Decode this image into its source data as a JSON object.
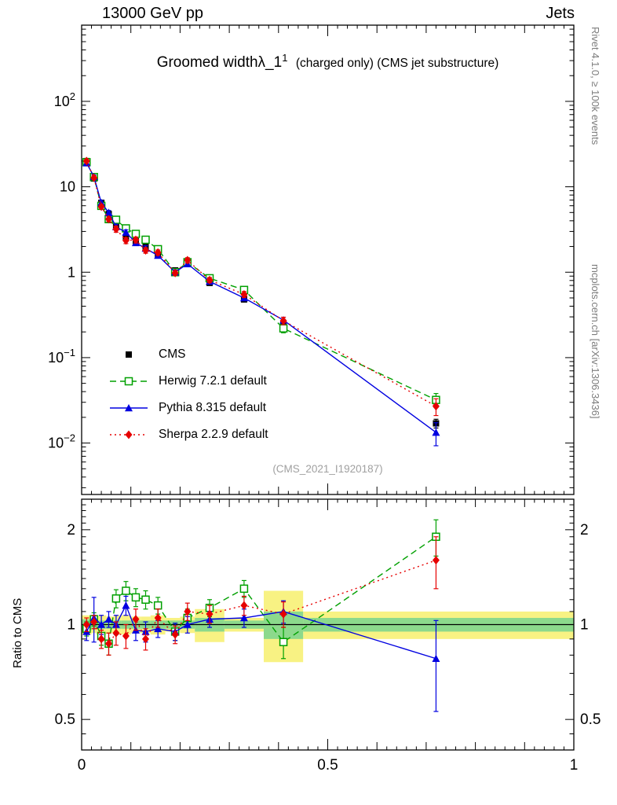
{
  "header": {
    "left": "13000 GeV pp",
    "right": "Jets"
  },
  "titles": {
    "main": "Groomed width",
    "lambda": "λ_1",
    "sup": "1",
    "suffix": "(charged only) (CMS jet substructure)"
  },
  "watermark": "(CMS_2021_I1920187)",
  "side_texts": {
    "rivet": "Rivet 4.1.0, ≥ 100k events",
    "mcplots": "mcplots.cern.ch [arXiv:1306.3436]"
  },
  "ratio_ylabel": "Ratio to CMS",
  "chart_data": {
    "type": "line",
    "title": "Groomed width λ_1^1 (charged only) (CMS jet substructure)",
    "xlabel": "",
    "ylabel": "",
    "xlim": [
      0,
      1
    ],
    "ylim_main": [
      0.0025,
      780
    ],
    "ylim_ratio": [
      0.4,
      2.5
    ],
    "xticks": [
      0,
      0.5,
      1
    ],
    "xtick_labels": [
      "0",
      "0.5",
      "1"
    ],
    "main_ytick_decades": [
      2,
      1,
      0,
      -1,
      -2
    ],
    "ratio_yticks": [
      2,
      1,
      0.5
    ],
    "ratio_yticks_minor": [
      0.45,
      0.6,
      0.7,
      0.8,
      0.9,
      1.1,
      1.2,
      1.3,
      1.4,
      1.5,
      1.6,
      1.7,
      1.8,
      1.9,
      2.1,
      2.2,
      2.3,
      2.4
    ],
    "band_colors": {
      "yellow": "#f8f283",
      "green": "#8cd98c"
    },
    "x": [
      0.01,
      0.025,
      0.04,
      0.055,
      0.07,
      0.09,
      0.11,
      0.13,
      0.155,
      0.19,
      0.215,
      0.26,
      0.33,
      0.41,
      0.72
    ],
    "series": [
      {
        "id": "cms",
        "name": "CMS",
        "color": "#000000",
        "marker": "square-filled",
        "line": "none",
        "values": [
          20,
          12.5,
          6.5,
          4.8,
          3.4,
          2.55,
          2.3,
          2.0,
          1.62,
          1.05,
          1.25,
          0.75,
          0.48,
          0.25,
          0.017
        ],
        "yerr": [
          1.2,
          0.8,
          0.4,
          0.3,
          0.2,
          0.15,
          0.13,
          0.12,
          0.1,
          0.07,
          0.08,
          0.05,
          0.03,
          0.02,
          0.002
        ]
      },
      {
        "id": "herwig",
        "name": "Herwig 7.2.1 default",
        "color": "#00a000",
        "marker": "square-open",
        "line": "dashed",
        "values": [
          19.4,
          13.0,
          5.98,
          4.18,
          4.11,
          3.26,
          2.81,
          2.4,
          1.86,
          1.0,
          1.31,
          0.85,
          0.62,
          0.22,
          0.032
        ],
        "yerr": [
          1.0,
          0.65,
          0.4,
          0.34,
          0.27,
          0.23,
          0.18,
          0.16,
          0.11,
          0.06,
          0.09,
          0.05,
          0.04,
          0.025,
          0.006
        ],
        "ratio": [
          0.97,
          1.04,
          0.92,
          0.87,
          1.21,
          1.28,
          1.22,
          1.2,
          1.15,
          0.95,
          1.05,
          1.13,
          1.3,
          0.88,
          1.9
        ],
        "ratio_err": [
          0.05,
          0.05,
          0.06,
          0.07,
          0.08,
          0.09,
          0.08,
          0.08,
          0.07,
          0.06,
          0.07,
          0.07,
          0.08,
          0.1,
          0.25
        ]
      },
      {
        "id": "pythia",
        "name": "Pythia 8.315 default",
        "color": "#0000e0",
        "marker": "triangle-filled",
        "line": "solid",
        "values": [
          19.0,
          13.1,
          6.5,
          4.99,
          3.4,
          2.93,
          2.21,
          1.9,
          1.57,
          1.0,
          1.25,
          0.78,
          0.5,
          0.275,
          0.0133
        ],
        "yerr": [
          1.0,
          0.65,
          0.39,
          0.29,
          0.24,
          0.2,
          0.16,
          0.14,
          0.1,
          0.06,
          0.075,
          0.047,
          0.035,
          0.022,
          0.004
        ],
        "ratio": [
          0.95,
          1.05,
          1.0,
          1.04,
          1.0,
          1.15,
          0.96,
          0.95,
          0.97,
          0.95,
          1.0,
          1.04,
          1.05,
          1.1,
          0.78
        ],
        "ratio_err": [
          0.06,
          0.17,
          0.07,
          0.06,
          0.07,
          0.08,
          0.07,
          0.07,
          0.06,
          0.06,
          0.06,
          0.06,
          0.07,
          0.09,
          0.25
        ]
      },
      {
        "id": "sherpa",
        "name": "Sherpa 2.2.9 default",
        "color": "#e60000",
        "marker": "diamond-filled",
        "line": "dotted",
        "values": [
          20.0,
          12.75,
          5.85,
          4.18,
          3.2,
          2.35,
          2.39,
          1.8,
          1.7,
          0.98,
          1.38,
          0.81,
          0.55,
          0.27,
          0.027
        ],
        "yerr": [
          1.0,
          0.64,
          0.35,
          0.29,
          0.26,
          0.19,
          0.19,
          0.13,
          0.12,
          0.06,
          0.097,
          0.057,
          0.044,
          0.027,
          0.006
        ],
        "ratio": [
          1.0,
          1.02,
          0.9,
          0.87,
          0.94,
          0.92,
          1.04,
          0.9,
          1.05,
          0.93,
          1.1,
          1.08,
          1.15,
          1.08,
          1.6
        ],
        "ratio_err": [
          0.05,
          0.05,
          0.06,
          0.07,
          0.08,
          0.08,
          0.08,
          0.07,
          0.07,
          0.06,
          0.07,
          0.07,
          0.08,
          0.1,
          0.3
        ]
      }
    ],
    "ratio_bands": [
      {
        "x0": 0.0,
        "x1": 0.02,
        "yellow": [
          0.93,
          1.07
        ],
        "green": [
          0.96,
          1.04
        ]
      },
      {
        "x0": 0.02,
        "x1": 0.03,
        "yellow": [
          0.94,
          1.06
        ],
        "green": [
          0.97,
          1.03
        ]
      },
      {
        "x0": 0.03,
        "x1": 0.05,
        "yellow": [
          0.93,
          1.07
        ],
        "green": [
          0.97,
          1.03
        ]
      },
      {
        "x0": 0.05,
        "x1": 0.065,
        "yellow": [
          0.94,
          1.06
        ],
        "green": [
          0.97,
          1.03
        ]
      },
      {
        "x0": 0.065,
        "x1": 0.08,
        "yellow": [
          0.93,
          1.07
        ],
        "green": [
          0.97,
          1.03
        ]
      },
      {
        "x0": 0.08,
        "x1": 0.1,
        "yellow": [
          0.93,
          1.07
        ],
        "green": [
          0.97,
          1.03
        ]
      },
      {
        "x0": 0.1,
        "x1": 0.12,
        "yellow": [
          0.94,
          1.06
        ],
        "green": [
          0.97,
          1.03
        ]
      },
      {
        "x0": 0.12,
        "x1": 0.14,
        "yellow": [
          0.94,
          1.06
        ],
        "green": [
          0.97,
          1.03
        ]
      },
      {
        "x0": 0.14,
        "x1": 0.17,
        "yellow": [
          0.93,
          1.07
        ],
        "green": [
          0.97,
          1.03
        ]
      },
      {
        "x0": 0.17,
        "x1": 0.2,
        "yellow": [
          0.95,
          1.05
        ],
        "green": [
          0.97,
          1.03
        ]
      },
      {
        "x0": 0.2,
        "x1": 0.23,
        "yellow": [
          0.94,
          1.06
        ],
        "green": [
          0.97,
          1.03
        ]
      },
      {
        "x0": 0.23,
        "x1": 0.29,
        "yellow": [
          0.88,
          1.12
        ],
        "green": [
          0.95,
          1.05
        ]
      },
      {
        "x0": 0.29,
        "x1": 0.37,
        "yellow": [
          0.95,
          1.05
        ],
        "green": [
          0.97,
          1.03
        ]
      },
      {
        "x0": 0.37,
        "x1": 0.45,
        "yellow": [
          0.76,
          1.28
        ],
        "green": [
          0.9,
          1.1
        ]
      },
      {
        "x0": 0.45,
        "x1": 1.0,
        "yellow": [
          0.9,
          1.1
        ],
        "green": [
          0.95,
          1.05
        ]
      }
    ]
  }
}
